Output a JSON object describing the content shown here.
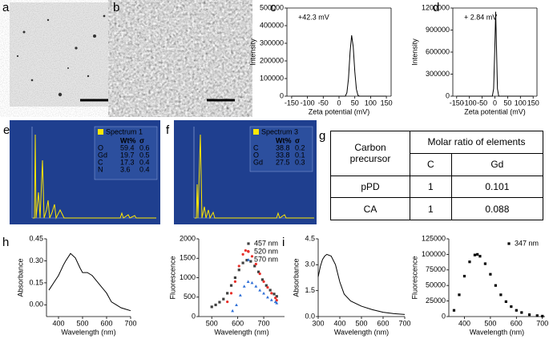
{
  "panel_labels": [
    "a",
    "b",
    "c",
    "d",
    "e",
    "f",
    "g",
    "h",
    "i"
  ],
  "edx": [
    {
      "title": "Spectrum 1",
      "columns": [
        "Wt%",
        "σ"
      ],
      "rows": [
        [
          "O",
          59.4,
          0.6
        ],
        [
          "Gd",
          19.7,
          0.5
        ],
        [
          "C",
          17.3,
          0.4
        ],
        [
          "N",
          3.6,
          0.4
        ]
      ]
    },
    {
      "title": "Spectrum 3",
      "columns": [
        "Wt%",
        "σ"
      ],
      "rows": [
        [
          "C",
          38.8,
          0.2
        ],
        [
          "O",
          33.8,
          0.1
        ],
        [
          "Gd",
          27.5,
          0.3
        ]
      ]
    }
  ],
  "table": {
    "header": [
      "Carbon precursor",
      "Molar ratio of elements"
    ],
    "subheader": [
      "C",
      "Gd"
    ],
    "rows": [
      [
        "pPD",
        1,
        0.101
      ],
      [
        "CA",
        1,
        0.088
      ]
    ]
  },
  "chart_data": [
    {
      "type": "line",
      "annotation": "+42.3 mV",
      "xlabel": "Zeta potential (mV)",
      "ylabel": "Intensity",
      "color": "#000000",
      "box": true,
      "x": [
        -150,
        0,
        20,
        25,
        30,
        35,
        40,
        45,
        50,
        55,
        60,
        65,
        150
      ],
      "values": [
        0,
        0,
        0,
        20000,
        100000,
        250000,
        345000,
        280000,
        140000,
        40000,
        5000,
        0,
        0
      ],
      "xlim": [
        -165,
        165
      ],
      "xticks": [
        -150,
        -100,
        -50,
        0,
        50,
        100,
        150
      ],
      "ylim": [
        0,
        500000
      ],
      "yticks": [
        0,
        100000,
        200000,
        300000,
        400000,
        500000
      ]
    },
    {
      "type": "line",
      "annotation": "+ 2.84 mV",
      "xlabel": "Zeta potential (mV)",
      "ylabel": "Intensity",
      "color": "#000000",
      "box": true,
      "x": [
        -150,
        -10,
        -5,
        0,
        3,
        6,
        10,
        15,
        150
      ],
      "values": [
        0,
        0,
        100000,
        700000,
        1150000,
        700000,
        100000,
        0,
        0
      ],
      "xlim": [
        -165,
        165
      ],
      "xticks": [
        -150,
        -100,
        -50,
        0,
        50,
        100,
        150
      ],
      "ylim": [
        0,
        1200000
      ],
      "yticks": [
        0,
        300000,
        600000,
        900000,
        1200000
      ]
    },
    {
      "type": "line",
      "xlabel": "Wavelength (nm)",
      "ylabel": "Absorbance",
      "color": "#000000",
      "box": false,
      "x": [
        360,
        380,
        400,
        420,
        430,
        450,
        470,
        490,
        500,
        520,
        540,
        550,
        580,
        600,
        620,
        640,
        660,
        680,
        700
      ],
      "values": [
        0.1,
        0.15,
        0.2,
        0.27,
        0.3,
        0.35,
        0.32,
        0.25,
        0.22,
        0.22,
        0.2,
        0.18,
        0.12,
        0.08,
        0.02,
        0.0,
        -0.02,
        -0.03,
        -0.04
      ],
      "xlim": [
        350,
        700
      ],
      "xticks": [
        400,
        500,
        600,
        700
      ],
      "ylim": [
        -0.08,
        0.45
      ],
      "yticks": [
        {
          "value": 0,
          "label": "0.00"
        },
        0.15,
        {
          "value": 0.3,
          "label": "0.30"
        },
        0.45
      ]
    },
    {
      "type": "scatter",
      "xlabel": "Wavelength (nm)",
      "ylabel": "Fluorescence",
      "box": false,
      "legend": "upper right",
      "series": [
        {
          "name": "457 nm",
          "color": "#404040",
          "marker": "square",
          "x": [
            500,
            515,
            530,
            545,
            560,
            575,
            590,
            605,
            620,
            635,
            650,
            665,
            680,
            695,
            710,
            725,
            740,
            750
          ],
          "values": [
            250,
            300,
            370,
            450,
            600,
            800,
            1000,
            1200,
            1380,
            1450,
            1420,
            1300,
            1150,
            950,
            800,
            680,
            580,
            520
          ]
        },
        {
          "name": "520 nm",
          "color": "#e8302a",
          "marker": "circle",
          "x": [
            560,
            575,
            590,
            605,
            620,
            630,
            640,
            655,
            670,
            685,
            700,
            715,
            730,
            745,
            750
          ],
          "values": [
            380,
            600,
            900,
            1300,
            1600,
            1700,
            1680,
            1550,
            1350,
            1100,
            900,
            750,
            600,
            480,
            420
          ]
        },
        {
          "name": "570 nm",
          "color": "#2f6fd6",
          "marker": "triangle",
          "x": [
            580,
            595,
            610,
            625,
            640,
            655,
            670,
            685,
            700,
            715,
            730,
            745,
            750
          ],
          "values": [
            150,
            300,
            550,
            780,
            900,
            870,
            780,
            680,
            600,
            500,
            430,
            380,
            350
          ]
        }
      ],
      "xlim": [
        450,
        780
      ],
      "xticks": [
        500,
        600,
        700
      ],
      "ylim": [
        0,
        2000
      ],
      "yticks": [
        0,
        500,
        1000,
        1500,
        2000
      ]
    },
    {
      "type": "line",
      "xlabel": "Wavelength (nm)",
      "ylabel": "Absorbance",
      "color": "#000000",
      "box": false,
      "x": [
        300,
        310,
        320,
        330,
        340,
        360,
        380,
        400,
        420,
        450,
        500,
        550,
        600,
        650,
        700
      ],
      "values": [
        2.3,
        2.9,
        3.3,
        3.5,
        3.6,
        3.5,
        3.0,
        2.0,
        1.3,
        0.9,
        0.6,
        0.4,
        0.25,
        0.17,
        0.12
      ],
      "xlim": [
        300,
        700
      ],
      "xticks": [
        300,
        400,
        500,
        600,
        700
      ],
      "ylim": [
        0,
        4.5
      ],
      "yticks": [
        {
          "value": 0,
          "label": "0.0"
        },
        1.5,
        {
          "value": 3,
          "label": "3.0"
        },
        4.5
      ]
    },
    {
      "type": "scatter",
      "xlabel": "Wavelength (nm)",
      "ylabel": "Fluorescence",
      "box": false,
      "legend": "upper right",
      "series": [
        {
          "name": "347 nm",
          "color": "#000000",
          "marker": "square",
          "x": [
            360,
            380,
            400,
            420,
            440,
            450,
            460,
            480,
            500,
            520,
            540,
            560,
            580,
            600,
            620,
            650,
            680,
            700
          ],
          "values": [
            10000,
            35000,
            65000,
            88000,
            99000,
            100000,
            97000,
            85000,
            68000,
            50000,
            35000,
            24000,
            16000,
            10000,
            6500,
            3000,
            1500,
            700
          ]
        }
      ],
      "xlim": [
        340,
        710
      ],
      "xticks": [
        400,
        500,
        600,
        700
      ],
      "ylim": [
        0,
        125000
      ],
      "yticks": [
        0,
        25000,
        50000,
        75000,
        100000,
        125000
      ]
    }
  ]
}
